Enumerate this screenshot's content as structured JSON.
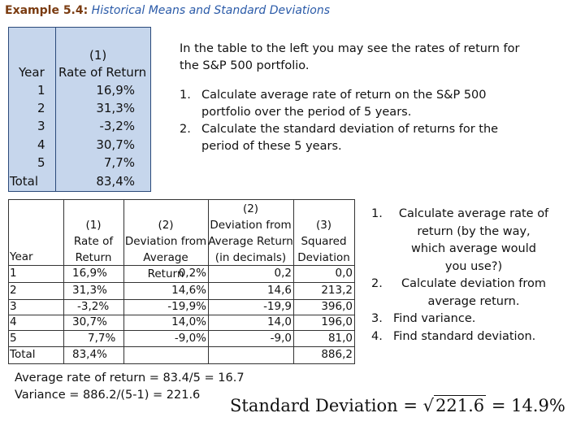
{
  "title": {
    "number": "Example 5.4:",
    "subtitle": "Historical Means and Standard Deviations"
  },
  "table1": {
    "header_col1": "Year",
    "header_col2_line1": "(1)",
    "header_col2_line2": "Rate of Return",
    "rows": [
      {
        "year": "1",
        "rate": "16,9%"
      },
      {
        "year": "2",
        "rate": "31,3%"
      },
      {
        "year": "3",
        "rate": "-3,2%"
      },
      {
        "year": "4",
        "rate": "30,7%"
      },
      {
        "year": "5",
        "rate": "7,7%"
      }
    ],
    "total_label": "Total",
    "total_value": "83,4%"
  },
  "intro": "In the table to the left you may see the rates of return for the S&P 500 portfolio.",
  "questions": [
    {
      "n": "1.",
      "text": "Calculate average rate of return on the S&P 500 portfolio over the period of 5 years."
    },
    {
      "n": "2.",
      "text": "Calculate the standard deviation of returns for the period of these 5 years."
    }
  ],
  "table2": {
    "headers": {
      "year": "Year",
      "rate": [
        "(1)",
        "Rate of",
        "Return"
      ],
      "dev_pct": [
        "(2)",
        "Deviation from",
        "Average Return"
      ],
      "dev_dec": [
        "(2)",
        "Deviation from",
        "Average Return",
        "(in decimals)"
      ],
      "sq": [
        "(3)",
        "Squared",
        "Deviation"
      ]
    },
    "rows": [
      {
        "year": "1",
        "rate": "16,9%",
        "dev_pct": "0,2%",
        "dev_dec": "0,2",
        "sq": "0,0"
      },
      {
        "year": "2",
        "rate": "31,3%",
        "dev_pct": "14,6%",
        "dev_dec": "14,6",
        "sq": "213,2"
      },
      {
        "year": "3",
        "rate": "-3,2%",
        "dev_pct": "-19,9%",
        "dev_dec": "-19,9",
        "sq": "396,0"
      },
      {
        "year": "4",
        "rate": "30,7%",
        "dev_pct": "14,0%",
        "dev_dec": "14,0",
        "sq": "196,0"
      },
      {
        "year": "5",
        "rate": "7,7%",
        "dev_pct": "-9,0%",
        "dev_dec": "-9,0",
        "sq": "81,0"
      }
    ],
    "total_label": "Total",
    "total_rate": "83,4%",
    "total_sq": "886,2"
  },
  "steps": [
    {
      "n": "1.",
      "lines": [
        "Calculate average rate of",
        "return (by the way,",
        "which average would",
        "you use?)"
      ]
    },
    {
      "n": "2.",
      "lines": [
        "Calculate deviation from",
        "average return."
      ]
    },
    {
      "n": "3.",
      "lines": [
        "Find variance."
      ]
    },
    {
      "n": "4.",
      "lines": [
        "Find standard deviation."
      ]
    }
  ],
  "calc": {
    "line1": "Average rate of return = 83.4/5 = 16.7",
    "line2": "Variance = 886.2/(5-1) = 221.6"
  },
  "std_dev": {
    "label": "Standard Deviation = ",
    "radical": "√",
    "radicand": "221.6",
    "result": " = 14.9%"
  }
}
